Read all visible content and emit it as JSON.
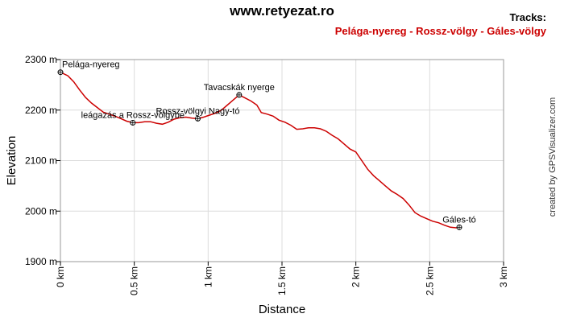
{
  "site_title": "www.retyezat.ro",
  "tracks_heading": "Tracks:",
  "track_name": "Pelága-nyereg - Rossz-völgy - Gáles-völgy",
  "credit": "created by GPSVisualizer.com",
  "colors": {
    "track": "#cc0000",
    "grid": "#dcdcdc",
    "frame": "#999999"
  },
  "chart_data": {
    "type": "line",
    "xlabel": "Distance",
    "ylabel": "Elevation",
    "xlim": [
      0,
      3
    ],
    "ylim": [
      1900,
      2300
    ],
    "x_ticks": [
      "0 km",
      "0.5 km",
      "1 km",
      "1.5 km",
      "2 km",
      "2.5 km",
      "3 km"
    ],
    "y_ticks": [
      "1900 m",
      "2000 m",
      "2100 m",
      "2200 m",
      "2300 m"
    ],
    "grid": true,
    "series": [
      {
        "points": [
          [
            0.0,
            2275
          ],
          [
            0.05,
            2268
          ],
          [
            0.09,
            2256
          ],
          [
            0.13,
            2240
          ],
          [
            0.17,
            2225
          ],
          [
            0.21,
            2214
          ],
          [
            0.25,
            2205
          ],
          [
            0.29,
            2196
          ],
          [
            0.33,
            2192
          ],
          [
            0.37,
            2188
          ],
          [
            0.41,
            2183
          ],
          [
            0.45,
            2178
          ],
          [
            0.49,
            2175
          ],
          [
            0.53,
            2175
          ],
          [
            0.57,
            2177
          ],
          [
            0.61,
            2177
          ],
          [
            0.65,
            2174
          ],
          [
            0.69,
            2172
          ],
          [
            0.73,
            2176
          ],
          [
            0.77,
            2182
          ],
          [
            0.81,
            2185
          ],
          [
            0.85,
            2186
          ],
          [
            0.89,
            2184
          ],
          [
            0.93,
            2183
          ],
          [
            0.97,
            2186
          ],
          [
            1.01,
            2190
          ],
          [
            1.05,
            2194
          ],
          [
            1.09,
            2200
          ],
          [
            1.13,
            2210
          ],
          [
            1.17,
            2220
          ],
          [
            1.21,
            2230
          ],
          [
            1.25,
            2224
          ],
          [
            1.29,
            2218
          ],
          [
            1.33,
            2210
          ],
          [
            1.36,
            2195
          ],
          [
            1.4,
            2192
          ],
          [
            1.44,
            2188
          ],
          [
            1.48,
            2180
          ],
          [
            1.52,
            2176
          ],
          [
            1.56,
            2170
          ],
          [
            1.6,
            2162
          ],
          [
            1.64,
            2163
          ],
          [
            1.68,
            2165
          ],
          [
            1.72,
            2165
          ],
          [
            1.76,
            2163
          ],
          [
            1.8,
            2158
          ],
          [
            1.84,
            2150
          ],
          [
            1.88,
            2143
          ],
          [
            1.92,
            2133
          ],
          [
            1.96,
            2123
          ],
          [
            2.0,
            2117
          ],
          [
            2.04,
            2100
          ],
          [
            2.08,
            2083
          ],
          [
            2.12,
            2070
          ],
          [
            2.16,
            2060
          ],
          [
            2.2,
            2050
          ],
          [
            2.24,
            2040
          ],
          [
            2.28,
            2033
          ],
          [
            2.32,
            2025
          ],
          [
            2.36,
            2012
          ],
          [
            2.4,
            1997
          ],
          [
            2.44,
            1990
          ],
          [
            2.48,
            1985
          ],
          [
            2.52,
            1980
          ],
          [
            2.56,
            1977
          ],
          [
            2.6,
            1972
          ],
          [
            2.64,
            1968
          ],
          [
            2.68,
            1967
          ],
          [
            2.7,
            1968
          ]
        ]
      }
    ],
    "waypoints": [
      {
        "label": "Pelága-nyereg",
        "x": 0.0,
        "y": 2275
      },
      {
        "label": "leágazás a Rossz-völgybe",
        "x": 0.49,
        "y": 2175
      },
      {
        "label": "Rossz-völgyi Nagy-tó",
        "x": 0.93,
        "y": 2183
      },
      {
        "label": "Tavacskák nyerge",
        "x": 1.21,
        "y": 2230
      },
      {
        "label": "Gáles-tó",
        "x": 2.7,
        "y": 1968
      }
    ]
  }
}
